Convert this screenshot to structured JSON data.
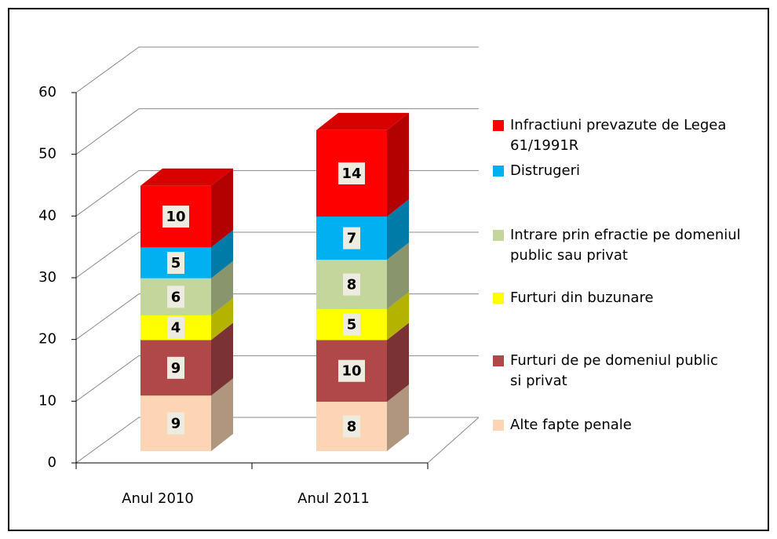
{
  "chart_data": {
    "type": "bar3d_stacked",
    "categories": [
      "Anul 2010",
      "Anul 2011"
    ],
    "series": [
      {
        "name": "Alte fapte penale",
        "color": "#fcd5b5",
        "label_color": "#000000",
        "values": [
          9,
          8
        ]
      },
      {
        "name": "Furturi de pe domeniul public si privat",
        "color": "#b0484a",
        "label_color": "#c0504d",
        "values": [
          9,
          10
        ]
      },
      {
        "name": "Furturi din buzunare",
        "color": "#ffff00",
        "label_color": "#000000",
        "values": [
          4,
          5
        ]
      },
      {
        "name": "Intrare prin efractie pe domeniul public sau privat",
        "color": "#c3d69b",
        "label_color": "#77933c",
        "values": [
          6,
          8
        ]
      },
      {
        "name": "Distrugeri",
        "color": "#00b0f0",
        "label_color": "#00b0f0",
        "values": [
          5,
          7
        ]
      },
      {
        "name": "Infractiuni prevazute de Legea 61/1991R",
        "color": "#ff0000",
        "label_color": "#ff0000",
        "values": [
          10,
          14
        ]
      }
    ],
    "ylim": [
      0,
      60
    ],
    "yticks": [
      0,
      10,
      20,
      30,
      40,
      50,
      60
    ],
    "grid": true,
    "legend": "right"
  }
}
